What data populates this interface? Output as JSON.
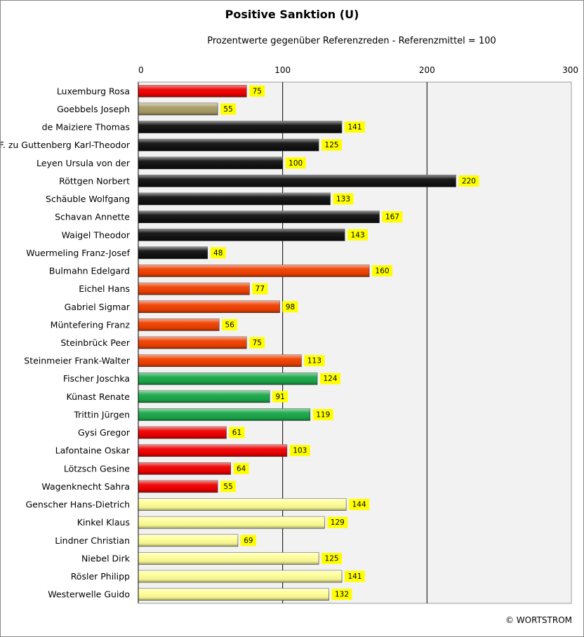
{
  "chart_data": {
    "type": "bar",
    "orientation": "horizontal",
    "title": "Positive Sanktion (U)",
    "subtitle": "Prozentwerte  gegenüber Referenzreden - Referenzmittel = 100",
    "xlim": [
      0,
      300
    ],
    "xticks": [
      "0",
      "100",
      "200",
      "300"
    ],
    "grid": true,
    "categories": [
      "Luxemburg Rosa",
      "Goebbels Joseph",
      "de Maiziere Thomas",
      "F. zu Guttenberg Karl-Theodor",
      "Leyen Ursula von der",
      "Röttgen Norbert",
      "Schäuble Wolfgang",
      "Schavan Annette",
      "Waigel Theodor",
      "Wuermeling Franz-Josef",
      "Bulmahn Edelgard",
      "Eichel Hans",
      "Gabriel Sigmar",
      "Müntefering Franz",
      "Steinbrück Peer",
      "Steinmeier Frank-Walter",
      "Fischer Joschka",
      "Künast Renate",
      "Trittin Jürgen",
      "Gysi Gregor",
      "Lafontaine Oskar",
      "Lötzsch Gesine",
      "Wagenknecht Sahra",
      "Genscher Hans-Dietrich",
      "Kinkel Klaus",
      "Lindner Christian",
      "Niebel Dirk",
      "Rösler Philipp",
      "Westerwelle Guido"
    ],
    "values": [
      75,
      55,
      141,
      125,
      100,
      220,
      133,
      167,
      143,
      48,
      160,
      77,
      98,
      56,
      75,
      113,
      124,
      91,
      119,
      61,
      103,
      64,
      55,
      144,
      129,
      69,
      125,
      141,
      132
    ],
    "bar_colors": [
      "#ee0000",
      "#a89c66",
      "#111111",
      "#111111",
      "#111111",
      "#111111",
      "#111111",
      "#111111",
      "#111111",
      "#111111",
      "#f04000",
      "#f04000",
      "#f04000",
      "#f04000",
      "#f04000",
      "#f04000",
      "#1aa84a",
      "#1aa84a",
      "#1aa84a",
      "#ee0000",
      "#ee0000",
      "#ee0000",
      "#ee0000",
      "#ffff99",
      "#ffff99",
      "#ffff99",
      "#ffff99",
      "#ffff99",
      "#ffff99"
    ],
    "label_background": "#ffff00",
    "plot_background": "#f2f2f2"
  },
  "copyright": "© WORTSTROM"
}
